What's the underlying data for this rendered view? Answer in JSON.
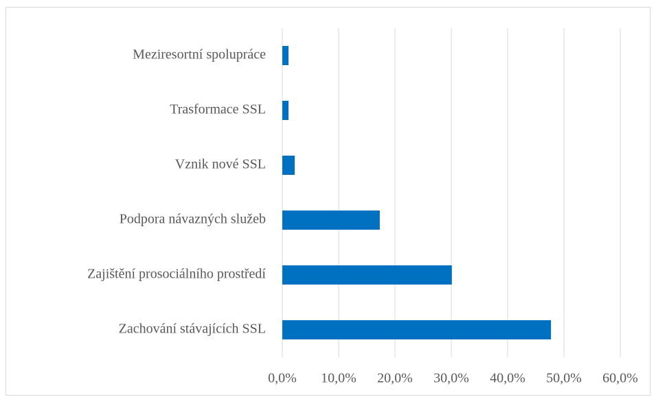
{
  "chart_data": {
    "type": "hbar",
    "categories": [
      "Meziresortní spolupráce",
      "Trasformace SSL",
      "Vznik nové SSL",
      "Podpora návazných služeb",
      "Zajištění prosociálního prostředí",
      "Zachování stávajících SSL"
    ],
    "values": [
      1.1,
      1.1,
      2.2,
      17.3,
      30.1,
      47.7
    ],
    "color": "#0070c0",
    "xlim": [
      0,
      60
    ],
    "xticks": [
      {
        "value": 0,
        "label": "0,0%"
      },
      {
        "value": 10,
        "label": "10,0%"
      },
      {
        "value": 20,
        "label": "20,0%"
      },
      {
        "value": 30,
        "label": "30,0%"
      },
      {
        "value": 40,
        "label": "40,0%"
      },
      {
        "value": 50,
        "label": "50,0%"
      },
      {
        "value": 60,
        "label": "60,0%"
      }
    ],
    "grid": true
  }
}
